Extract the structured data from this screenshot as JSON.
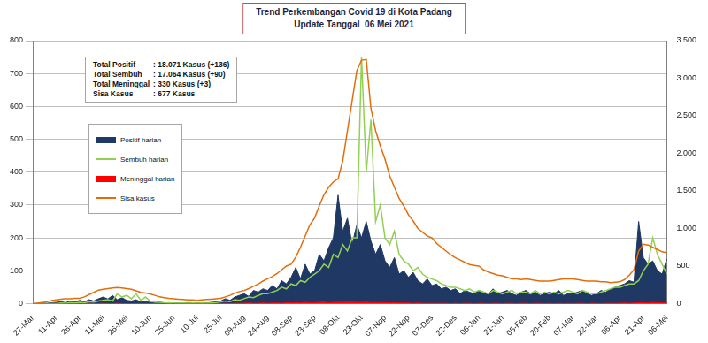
{
  "chart_data": {
    "type": "line",
    "title": "Trend Perkembangan Covid 19 di Kota Padang",
    "subtitle": "Update Tanggal  06 Mei 2021",
    "annotations": [
      {
        "label": "Total Positif",
        "text": ": 18.071 Kasus (+136)"
      },
      {
        "label": "Total Sembuh",
        "text": ": 17.064 Kasus (+90)"
      },
      {
        "label": "Total Meninggal",
        "text": ": 330 Kasus (+3)"
      },
      {
        "label": "Sisa Kasus",
        "text": ": 677 Kasus"
      }
    ],
    "legend": "left",
    "grid": true,
    "categories": [
      "27-Mar",
      null,
      null,
      null,
      null,
      "11-Apr",
      null,
      null,
      null,
      null,
      "26-Apr",
      null,
      null,
      null,
      null,
      "11-Mei",
      null,
      null,
      null,
      null,
      "26-Mei",
      null,
      null,
      null,
      null,
      "10-Jun",
      null,
      null,
      null,
      null,
      "25-Jun",
      null,
      null,
      null,
      null,
      "10-Jul",
      null,
      null,
      null,
      null,
      "25-Jul",
      null,
      null,
      null,
      null,
      "09-Aug",
      null,
      null,
      null,
      null,
      "24-Aug",
      null,
      null,
      null,
      null,
      "08-Sep",
      null,
      null,
      null,
      null,
      "23-Sep",
      null,
      null,
      null,
      null,
      "08-Okt",
      null,
      null,
      null,
      null,
      "23-Okt",
      null,
      null,
      null,
      null,
      "07-Nop",
      null,
      null,
      null,
      null,
      "22-Nop",
      null,
      null,
      null,
      null,
      "07-Des",
      null,
      null,
      null,
      null,
      "22-Des",
      null,
      null,
      null,
      null,
      "06-Jan",
      null,
      null,
      null,
      null,
      "21-Jan",
      null,
      null,
      null,
      null,
      "05-Feb",
      null,
      null,
      null,
      null,
      "20-Feb",
      null,
      null,
      null,
      null,
      "07-Mar",
      null,
      null,
      null,
      null,
      "22-Mar",
      null,
      null,
      null,
      null,
      "06-Apr",
      null,
      null,
      null,
      null,
      "21-Apr",
      null,
      null,
      null,
      null,
      "06-Mei"
    ],
    "ylim": [
      0,
      800
    ],
    "yticks": [
      0,
      100,
      200,
      300,
      400,
      500,
      600,
      700,
      800
    ],
    "y2lim": [
      0,
      3500
    ],
    "y2ticks": [
      0,
      500,
      {
        "value": 1000,
        "label": "1.000"
      },
      {
        "value": 1500,
        "label": "1.500"
      },
      {
        "value": 2000,
        "label": "2.000"
      },
      {
        "value": 2500,
        "label": "2.500"
      },
      {
        "value": 3000,
        "label": "3.000"
      },
      {
        "value": 3500,
        "label": "3.500"
      }
    ],
    "series": [
      {
        "name": "Positif harian",
        "type": "area",
        "color": "#1f3864",
        "values": [
          0,
          1,
          2,
          1,
          3,
          4,
          6,
          3,
          8,
          5,
          10,
          6,
          12,
          8,
          15,
          20,
          14,
          25,
          12,
          18,
          10,
          8,
          12,
          5,
          6,
          4,
          3,
          5,
          2,
          3,
          1,
          2,
          1,
          3,
          2,
          2,
          3,
          2,
          4,
          5,
          8,
          15,
          10,
          20,
          25,
          30,
          22,
          40,
          35,
          45,
          40,
          55,
          45,
          70,
          60,
          80,
          110,
          75,
          120,
          90,
          100,
          150,
          130,
          170,
          200,
          330,
          220,
          260,
          180,
          240,
          200,
          250,
          190,
          150,
          180,
          130,
          110,
          140,
          90,
          100,
          80,
          95,
          70,
          60,
          75,
          55,
          60,
          45,
          50,
          40,
          45,
          30,
          40,
          35,
          30,
          40,
          35,
          30,
          45,
          30,
          35,
          40,
          30,
          25,
          35,
          40,
          30,
          35,
          25,
          30,
          35,
          30,
          40,
          25,
          30,
          30,
          35,
          40,
          30,
          25,
          30,
          40,
          35,
          45,
          50,
          55,
          60,
          70,
          65,
          250,
          140,
          120,
          130,
          100,
          90,
          136
        ]
      },
      {
        "name": "Sembuh harian",
        "type": "line",
        "color": "#92d050",
        "values": [
          0,
          0,
          0,
          0,
          0,
          0,
          2,
          1,
          3,
          2,
          4,
          3,
          6,
          5,
          8,
          10,
          12,
          8,
          30,
          20,
          25,
          15,
          30,
          10,
          20,
          8,
          5,
          4,
          3,
          2,
          2,
          1,
          2,
          1,
          2,
          1,
          2,
          1,
          2,
          3,
          5,
          8,
          6,
          12,
          10,
          15,
          20,
          18,
          25,
          30,
          30,
          35,
          40,
          50,
          45,
          60,
          55,
          70,
          65,
          80,
          90,
          100,
          120,
          110,
          150,
          140,
          180,
          160,
          200,
          200,
          750,
          400,
          560,
          250,
          300,
          200,
          180,
          220,
          150,
          130,
          120,
          100,
          110,
          90,
          80,
          75,
          70,
          60,
          55,
          50,
          50,
          45,
          40,
          45,
          35,
          40,
          35,
          30,
          40,
          35,
          30,
          35,
          40,
          30,
          35,
          35,
          30,
          40,
          30,
          35,
          30,
          35,
          30,
          35,
          40,
          35,
          30,
          40,
          35,
          30,
          30,
          35,
          40,
          45,
          50,
          50,
          55,
          60,
          60,
          70,
          100,
          120,
          200,
          150,
          120,
          90
        ]
      },
      {
        "name": "Meninggal harian",
        "type": "area",
        "color": "#ff0000",
        "values": [
          0,
          0,
          0,
          0,
          0,
          0,
          0,
          0,
          0,
          0,
          0,
          0,
          1,
          0,
          0,
          1,
          0,
          0,
          1,
          0,
          0,
          0,
          0,
          0,
          0,
          0,
          0,
          0,
          0,
          0,
          0,
          0,
          0,
          0,
          0,
          0,
          0,
          0,
          0,
          0,
          0,
          1,
          0,
          1,
          1,
          1,
          2,
          1,
          1,
          2,
          1,
          2,
          2,
          1,
          3,
          2,
          3,
          2,
          4,
          3,
          3,
          4,
          5,
          3,
          4,
          5,
          4,
          6,
          5,
          4,
          4,
          5,
          3,
          4,
          3,
          3,
          2,
          3,
          2,
          2,
          2,
          1,
          2,
          1,
          1,
          1,
          1,
          1,
          1,
          0,
          1,
          0,
          1,
          1,
          0,
          1,
          1,
          0,
          1,
          1,
          0,
          1,
          1,
          0,
          1,
          1,
          0,
          1,
          1,
          0,
          1,
          0,
          1,
          0,
          1,
          0,
          1,
          1,
          0,
          1,
          1,
          0,
          1,
          1,
          1,
          1,
          2,
          1,
          2,
          3,
          3,
          2,
          4,
          3,
          2,
          3
        ]
      },
      {
        "name": "Sisa kasus",
        "type": "line",
        "axis": "y2",
        "color": "#e46c0a",
        "values": [
          0,
          5,
          15,
          25,
          40,
          50,
          60,
          65,
          65,
          70,
          70,
          90,
          120,
          150,
          180,
          190,
          200,
          210,
          215,
          210,
          200,
          190,
          170,
          150,
          140,
          130,
          110,
          90,
          80,
          70,
          65,
          60,
          55,
          50,
          50,
          45,
          50,
          55,
          60,
          65,
          70,
          90,
          110,
          140,
          160,
          175,
          200,
          230,
          260,
          300,
          330,
          360,
          400,
          450,
          500,
          525,
          620,
          750,
          900,
          1050,
          1140,
          1300,
          1450,
          1550,
          1620,
          1660,
          1900,
          2300,
          2700,
          3100,
          3240,
          3250,
          2600,
          2300,
          2100,
          1920,
          1700,
          1550,
          1400,
          1300,
          1180,
          1100,
          1000,
          950,
          900,
          875,
          800,
          750,
          700,
          650,
          610,
          580,
          550,
          520,
          510,
          500,
          450,
          420,
          400,
          380,
          370,
          350,
          330,
          330,
          320,
          330,
          320,
          310,
          300,
          300,
          300,
          310,
          320,
          330,
          330,
          330,
          320,
          310,
          300,
          300,
          300,
          290,
          290,
          280,
          285,
          290,
          320,
          380,
          450,
          700,
          790,
          780,
          750,
          720,
          690,
          677
        ]
      }
    ]
  }
}
